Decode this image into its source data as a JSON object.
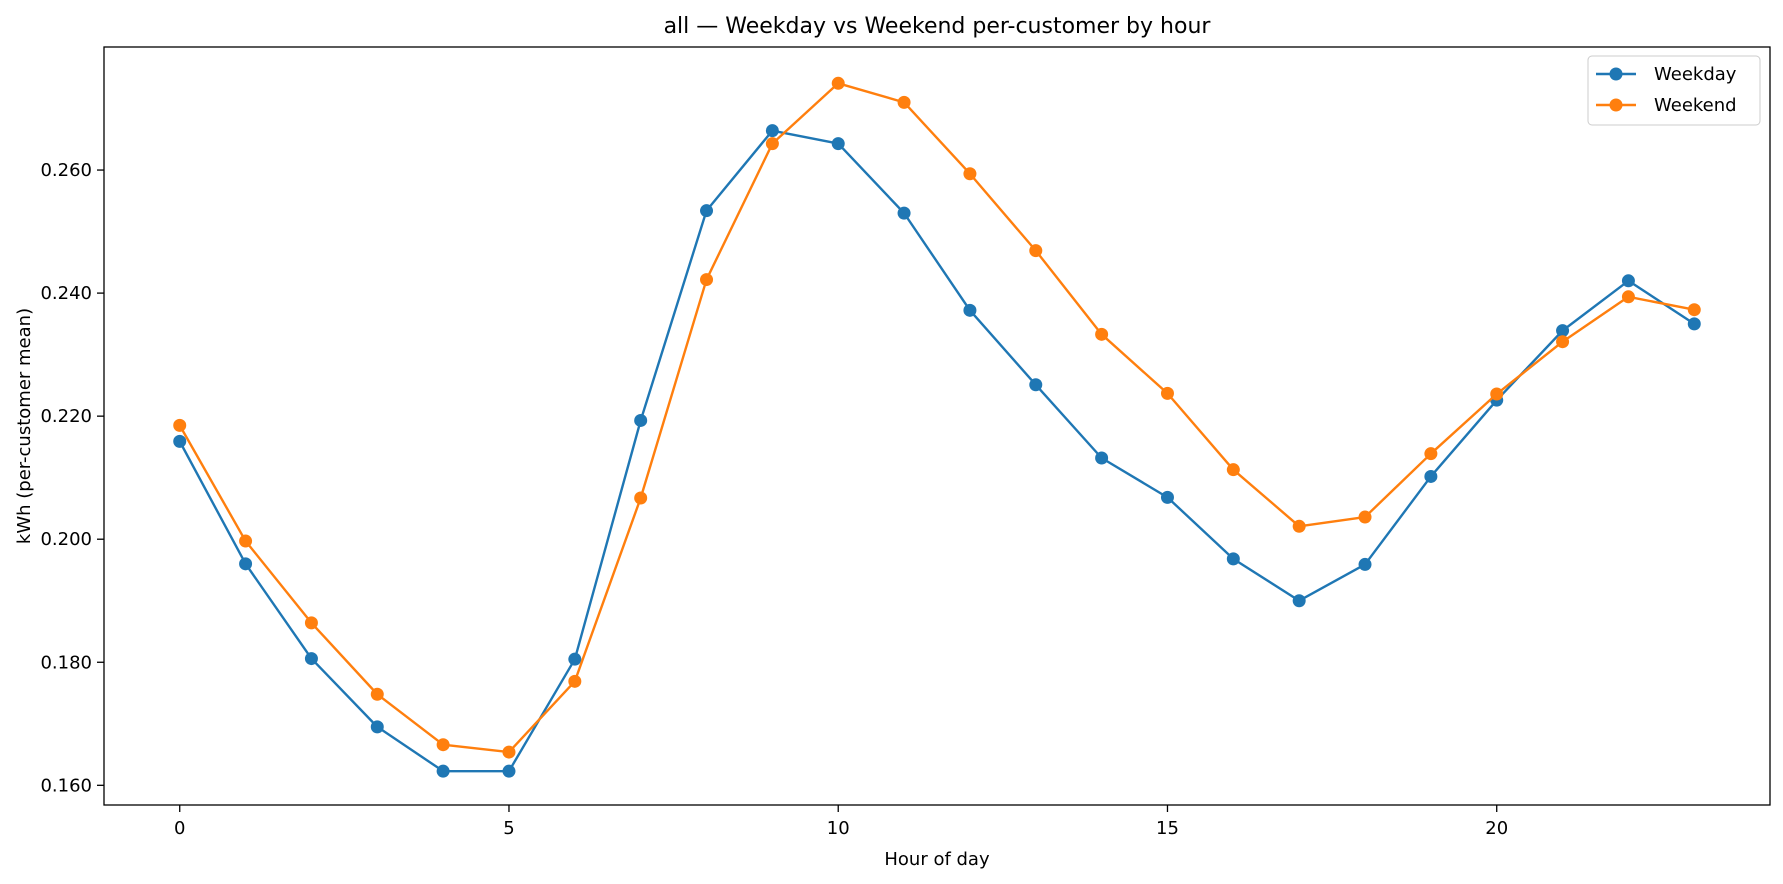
{
  "chart_data": {
    "type": "line",
    "title": "all — Weekday vs Weekend per-customer by hour",
    "xlabel": "Hour of day",
    "ylabel": "kWh (per-customer mean)",
    "xlim": [
      -1.15,
      24.15
    ],
    "ylim": [
      0.1568,
      0.28
    ],
    "xticks": [
      0,
      5,
      10,
      15,
      20
    ],
    "yticks": [
      0.16,
      0.18,
      0.2,
      0.22,
      0.24,
      0.26
    ],
    "ytick_labels": [
      "0.160",
      "0.180",
      "0.200",
      "0.220",
      "0.240",
      "0.260"
    ],
    "xtick_labels": [
      "0",
      "5",
      "10",
      "15",
      "20"
    ],
    "grid": false,
    "legend_position": "top-right",
    "x": [
      0,
      1,
      2,
      3,
      4,
      5,
      6,
      7,
      8,
      9,
      10,
      11,
      12,
      13,
      14,
      15,
      16,
      17,
      18,
      19,
      20,
      21,
      22,
      23
    ],
    "series": [
      {
        "name": "Weekday",
        "color": "#1f77b4",
        "marker": "circle",
        "values": [
          0.2159,
          0.196,
          0.1806,
          0.1695,
          0.1623,
          0.1623,
          0.1805,
          0.2193,
          0.2534,
          0.2664,
          0.2643,
          0.253,
          0.2372,
          0.2251,
          0.2132,
          0.2068,
          0.1968,
          0.19,
          0.1959,
          0.2102,
          0.2226,
          0.2339,
          0.242,
          0.235
        ]
      },
      {
        "name": "Weekend",
        "color": "#ff7f0e",
        "marker": "circle",
        "values": [
          0.2185,
          0.1997,
          0.1864,
          0.1748,
          0.1666,
          0.1654,
          0.1769,
          0.2067,
          0.2422,
          0.2643,
          0.2741,
          0.271,
          0.2594,
          0.2469,
          0.2333,
          0.2237,
          0.2113,
          0.2021,
          0.2036,
          0.2139,
          0.2236,
          0.2321,
          0.2394,
          0.2373
        ]
      }
    ]
  }
}
